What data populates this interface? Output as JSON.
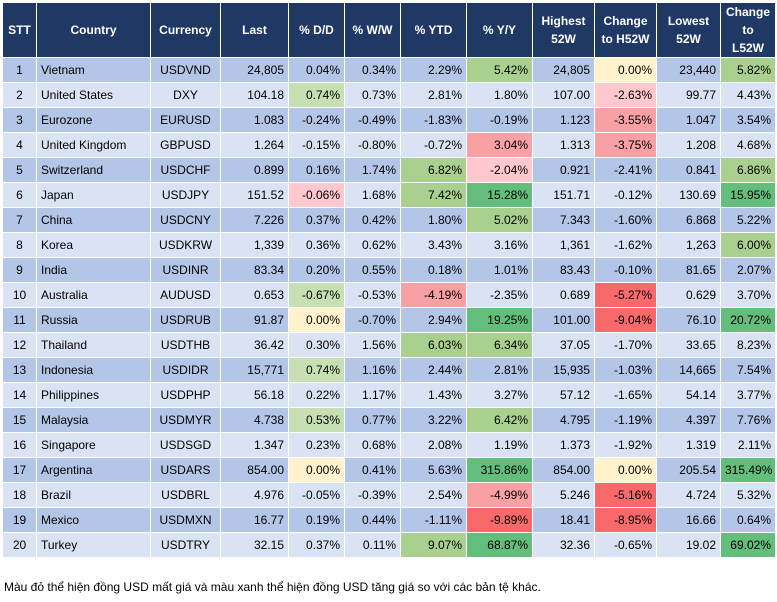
{
  "colors": {
    "header_bg": "#1f3864",
    "row_odd": "#b4c6e7",
    "row_even": "#dae3f3",
    "neutral": "#fff2cc",
    "green_light": "#c6e0b4",
    "green_mid": "#a9d08e",
    "green_strong": "#63be7b",
    "red_light": "#ffc7ce",
    "red_mid": "#f8a1a4",
    "red_strong": "#f8696b"
  },
  "table": {
    "headers": [
      "STT",
      "Country",
      "Currency",
      "Last",
      "% D/D",
      "% W/W",
      "% YTD",
      "% Y/Y",
      "Highest 52W",
      "Change to H52W",
      "Lowest 52W",
      "Change to L52W"
    ],
    "rows": [
      {
        "stt": "1",
        "country": "Vietnam",
        "currency": "USDVND",
        "last": "24,805",
        "dd": "0.04%",
        "ww": "0.34%",
        "ytd": "2.29%",
        "yy": "5.42%",
        "h52": "24,805",
        "ch52": "0.00%",
        "l52": "23,440",
        "cl52": "5.82%"
      },
      {
        "stt": "2",
        "country": "United States",
        "currency": "DXY",
        "last": "104.18",
        "dd": "0.74%",
        "ww": "0.73%",
        "ytd": "2.81%",
        "yy": "1.80%",
        "h52": "107.00",
        "ch52": "-2.63%",
        "l52": "99.77",
        "cl52": "4.43%"
      },
      {
        "stt": "3",
        "country": "Eurozone",
        "currency": "EURUSD",
        "last": "1.083",
        "dd": "-0.24%",
        "ww": "-0.49%",
        "ytd": "-1.83%",
        "yy": "-0.19%",
        "h52": "1.123",
        "ch52": "-3.55%",
        "l52": "1.047",
        "cl52": "3.54%"
      },
      {
        "stt": "4",
        "country": "United Kingdom",
        "currency": "GBPUSD",
        "last": "1.264",
        "dd": "-0.15%",
        "ww": "-0.80%",
        "ytd": "-0.72%",
        "yy": "3.04%",
        "h52": "1.313",
        "ch52": "-3.75%",
        "l52": "1.208",
        "cl52": "4.68%"
      },
      {
        "stt": "5",
        "country": "Switzerland",
        "currency": "USDCHF",
        "last": "0.899",
        "dd": "0.16%",
        "ww": "1.74%",
        "ytd": "6.82%",
        "yy": "-2.04%",
        "h52": "0.921",
        "ch52": "-2.41%",
        "l52": "0.841",
        "cl52": "6.86%"
      },
      {
        "stt": "6",
        "country": "Japan",
        "currency": "USDJPY",
        "last": "151.52",
        "dd": "-0.06%",
        "ww": "1.68%",
        "ytd": "7.42%",
        "yy": "15.28%",
        "h52": "151.71",
        "ch52": "-0.12%",
        "l52": "130.69",
        "cl52": "15.95%"
      },
      {
        "stt": "7",
        "country": "China",
        "currency": "USDCNY",
        "last": "7.226",
        "dd": "0.37%",
        "ww": "0.42%",
        "ytd": "1.80%",
        "yy": "5.02%",
        "h52": "7.343",
        "ch52": "-1.60%",
        "l52": "6.868",
        "cl52": "5.22%"
      },
      {
        "stt": "8",
        "country": "Korea",
        "currency": "USDKRW",
        "last": "1,339",
        "dd": "0.36%",
        "ww": "0.62%",
        "ytd": "3.43%",
        "yy": "3.16%",
        "h52": "1,361",
        "ch52": "-1.62%",
        "l52": "1,263",
        "cl52": "6.00%"
      },
      {
        "stt": "9",
        "country": "India",
        "currency": "USDINR",
        "last": "83.34",
        "dd": "0.20%",
        "ww": "0.55%",
        "ytd": "0.18%",
        "yy": "1.01%",
        "h52": "83.43",
        "ch52": "-0.10%",
        "l52": "81.65",
        "cl52": "2.07%"
      },
      {
        "stt": "10",
        "country": "Australia",
        "currency": "AUDUSD",
        "last": "0.653",
        "dd": "-0.67%",
        "ww": "-0.53%",
        "ytd": "-4.19%",
        "yy": "-2.35%",
        "h52": "0.689",
        "ch52": "-5.27%",
        "l52": "0.629",
        "cl52": "3.70%"
      },
      {
        "stt": "11",
        "country": "Russia",
        "currency": "USDRUB",
        "last": "91.87",
        "dd": "0.00%",
        "ww": "-0.70%",
        "ytd": "2.94%",
        "yy": "19.25%",
        "h52": "101.00",
        "ch52": "-9.04%",
        "l52": "76.10",
        "cl52": "20.72%"
      },
      {
        "stt": "12",
        "country": "Thailand",
        "currency": "USDTHB",
        "last": "36.42",
        "dd": "0.30%",
        "ww": "1.56%",
        "ytd": "6.03%",
        "yy": "6.34%",
        "h52": "37.05",
        "ch52": "-1.70%",
        "l52": "33.65",
        "cl52": "8.23%"
      },
      {
        "stt": "13",
        "country": "Indonesia",
        "currency": "USDIDR",
        "last": "15,771",
        "dd": "0.74%",
        "ww": "1.16%",
        "ytd": "2.44%",
        "yy": "2.81%",
        "h52": "15,935",
        "ch52": "-1.03%",
        "l52": "14,665",
        "cl52": "7.54%"
      },
      {
        "stt": "14",
        "country": "Philippines",
        "currency": "USDPHP",
        "last": "56.18",
        "dd": "0.22%",
        "ww": "1.17%",
        "ytd": "1.43%",
        "yy": "3.27%",
        "h52": "57.12",
        "ch52": "-1.65%",
        "l52": "54.14",
        "cl52": "3.77%"
      },
      {
        "stt": "15",
        "country": "Malaysia",
        "currency": "USDMYR",
        "last": "4.738",
        "dd": "0.53%",
        "ww": "0.77%",
        "ytd": "3.22%",
        "yy": "6.42%",
        "h52": "4.795",
        "ch52": "-1.19%",
        "l52": "4.397",
        "cl52": "7.76%"
      },
      {
        "stt": "16",
        "country": "Singapore",
        "currency": "USDSGD",
        "last": "1.347",
        "dd": "0.23%",
        "ww": "0.68%",
        "ytd": "2.08%",
        "yy": "1.19%",
        "h52": "1.373",
        "ch52": "-1.92%",
        "l52": "1.319",
        "cl52": "2.11%"
      },
      {
        "stt": "17",
        "country": "Argentina",
        "currency": "USDARS",
        "last": "854.00",
        "dd": "0.00%",
        "ww": "0.41%",
        "ytd": "5.63%",
        "yy": "315.86%",
        "h52": "854.00",
        "ch52": "0.00%",
        "l52": "205.54",
        "cl52": "315.49%"
      },
      {
        "stt": "18",
        "country": "Brazil",
        "currency": "USDBRL",
        "last": "4.976",
        "dd": "-0.05%",
        "ww": "-0.39%",
        "ytd": "2.54%",
        "yy": "-4.99%",
        "h52": "5.246",
        "ch52": "-5.16%",
        "l52": "4.724",
        "cl52": "5.32%"
      },
      {
        "stt": "19",
        "country": "Mexico",
        "currency": "USDMXN",
        "last": "16.77",
        "dd": "0.19%",
        "ww": "0.44%",
        "ytd": "-1.11%",
        "yy": "-9.89%",
        "h52": "18.41",
        "ch52": "-8.95%",
        "l52": "16.66",
        "cl52": "0.64%"
      },
      {
        "stt": "20",
        "country": "Turkey",
        "currency": "USDTRY",
        "last": "32.15",
        "dd": "0.37%",
        "ww": "0.11%",
        "ytd": "9.07%",
        "yy": "68.87%",
        "h52": "32.36",
        "ch52": "-0.65%",
        "l52": "19.02",
        "cl52": "69.02%"
      }
    ]
  },
  "chart_data": {
    "type": "table",
    "title": "",
    "columns": [
      "STT",
      "Country",
      "Currency",
      "Last",
      "% D/D",
      "% W/W",
      "% YTD",
      "% Y/Y",
      "Highest 52W",
      "Change to H52W",
      "Lowest 52W",
      "Change to L52W"
    ],
    "highlights": {
      "dd": {
        "green": [
          "2",
          "10",
          "13",
          "15"
        ],
        "red": [
          "6"
        ],
        "neutral": [
          "11",
          "17"
        ]
      },
      "ytd": {
        "green": [
          "5",
          "6",
          "12",
          "20"
        ],
        "red": [
          "10"
        ]
      },
      "yy": {
        "green": [
          "1",
          "6",
          "7",
          "11",
          "12",
          "15",
          "17",
          "20"
        ],
        "red": [
          "4",
          "5",
          "18",
          "19"
        ]
      },
      "ch52": {
        "neutral": [
          "1",
          "17"
        ],
        "red": [
          "2",
          "3",
          "4",
          "10",
          "11",
          "18",
          "19"
        ]
      },
      "cl52": {
        "green": [
          "1",
          "5",
          "6",
          "8",
          "11",
          "17",
          "20"
        ]
      }
    }
  },
  "note": "Màu đỏ thể hiện đồng USD mất giá và màu xanh thể hiện đồng USD tăng giá so với các bản tệ khác."
}
